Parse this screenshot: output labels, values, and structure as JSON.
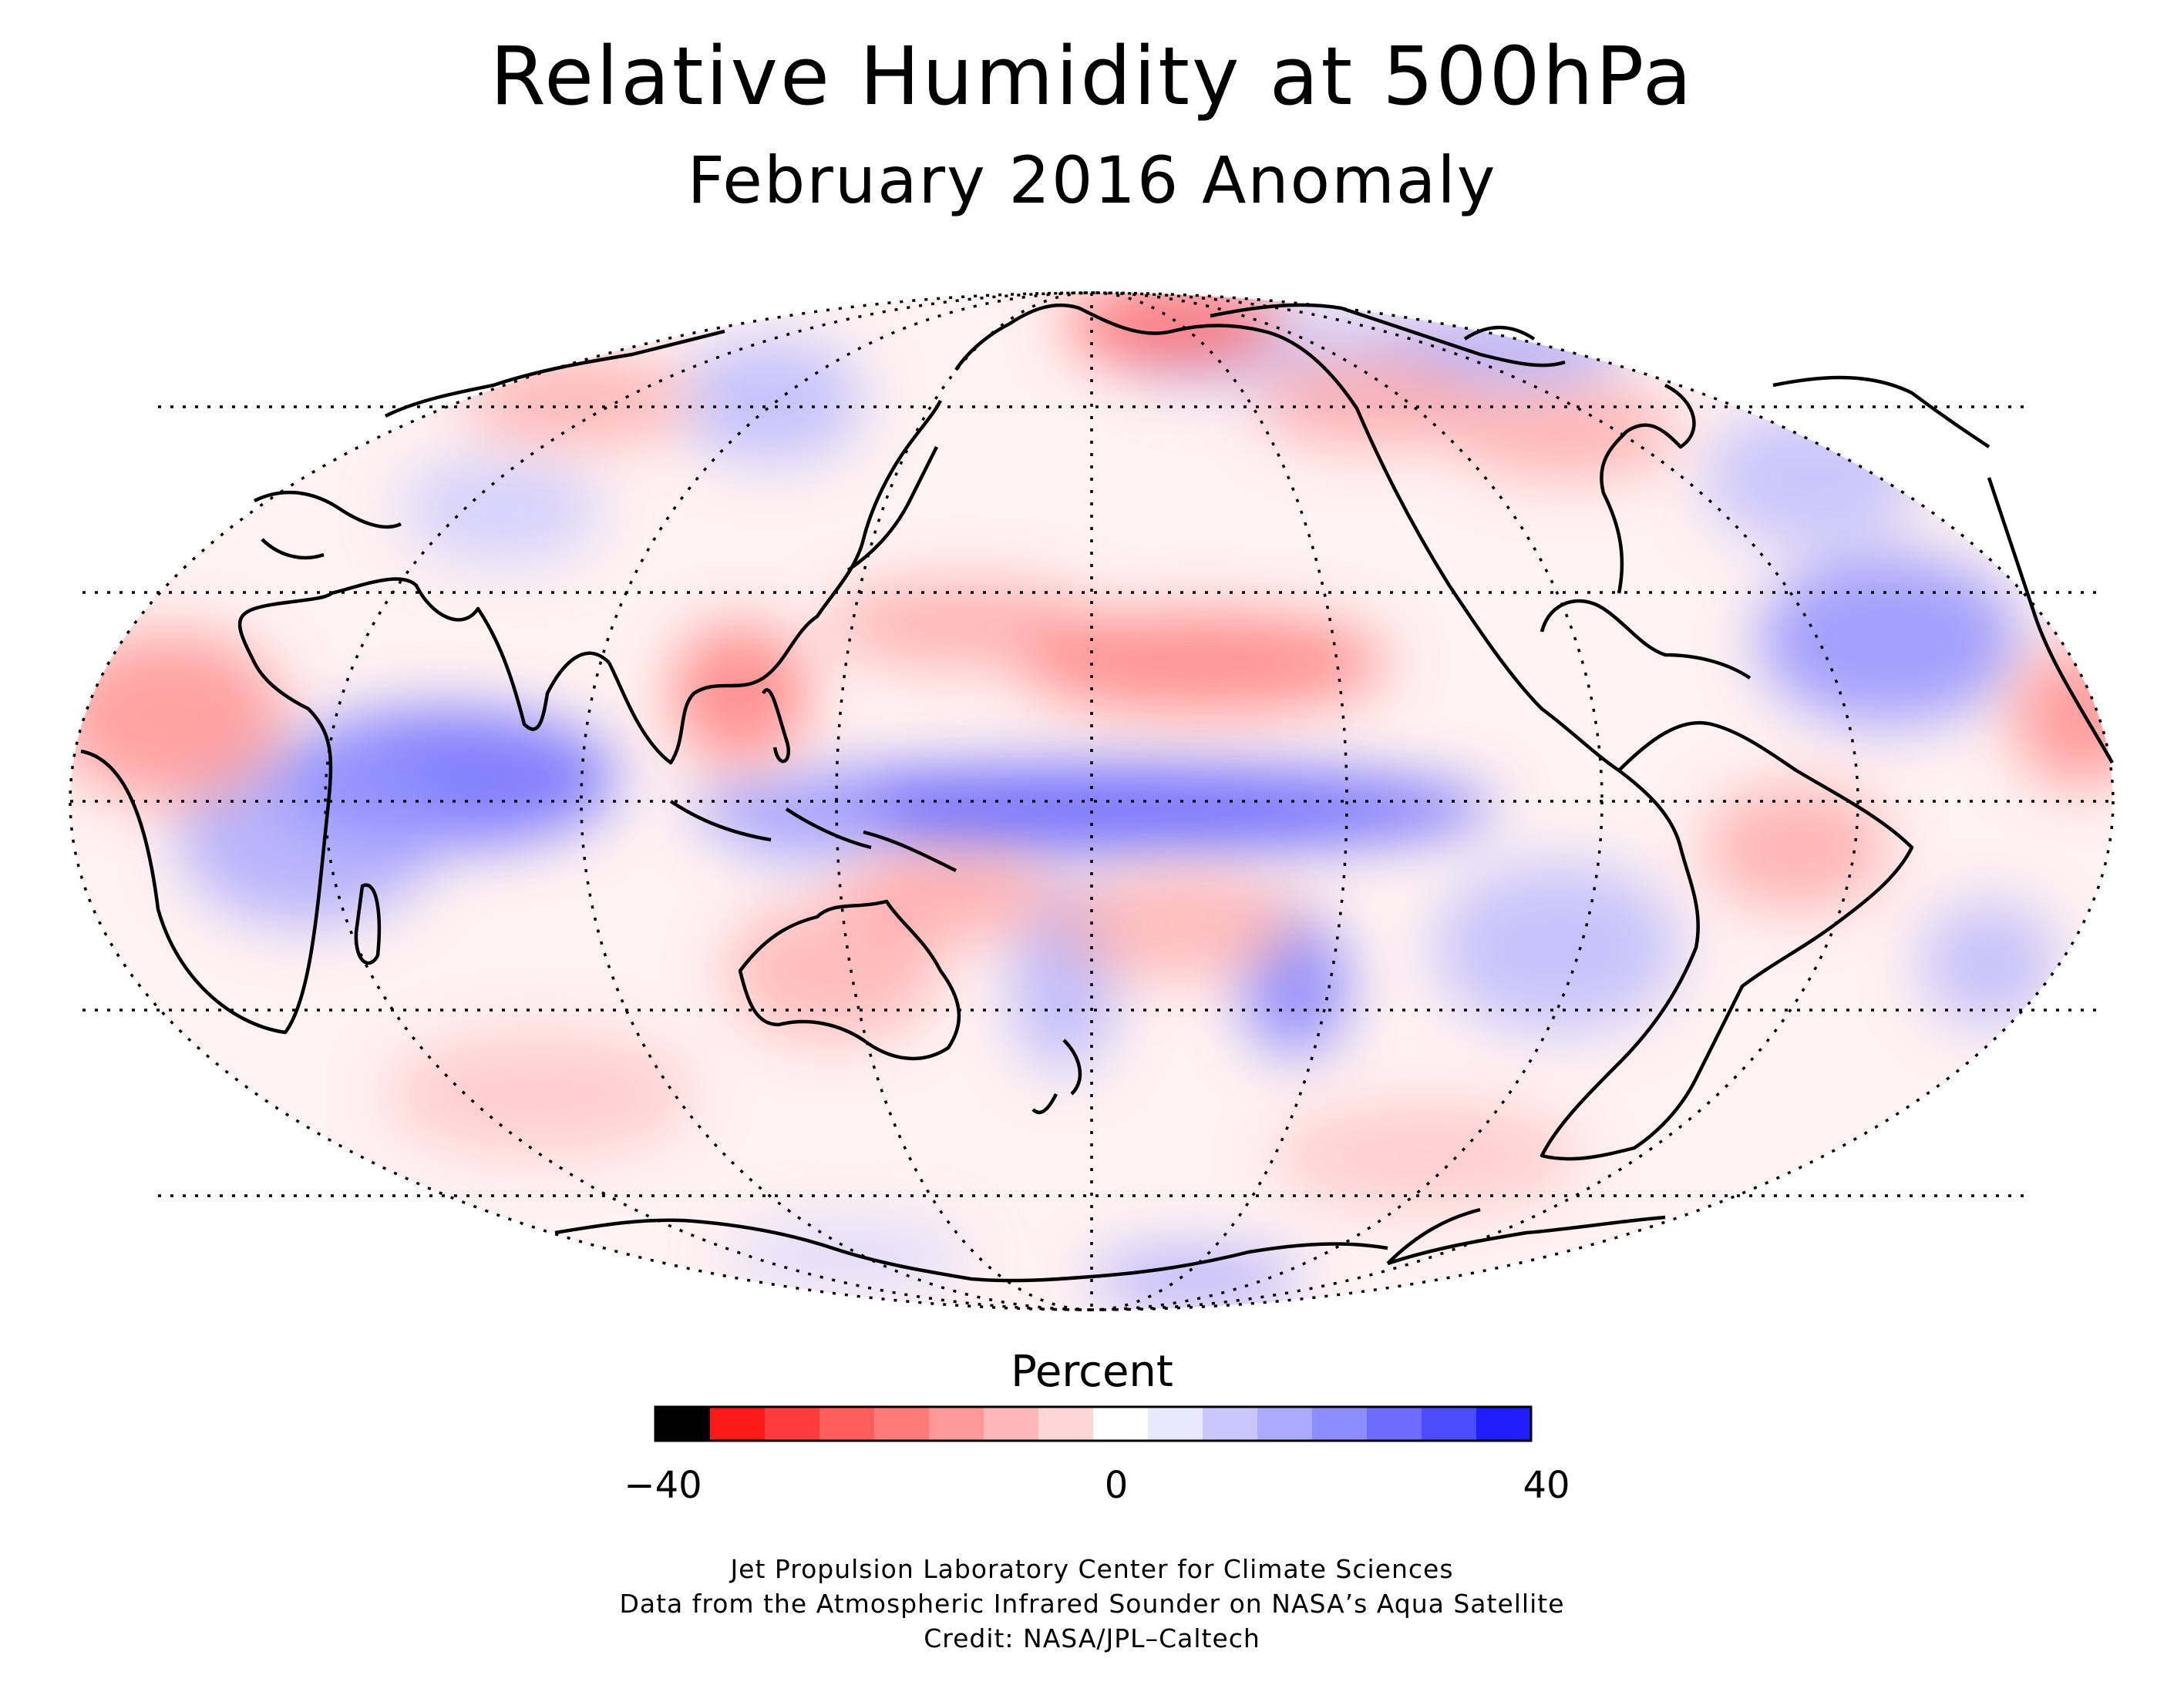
{
  "title": "Relative Humidity at 500hPa",
  "subtitle": "February 2016 Anomaly",
  "legend": {
    "title": "Percent",
    "min_label": "−40",
    "mid_label": "0",
    "max_label": "40",
    "colors": [
      "#000000",
      "#ff1a1a",
      "#ff3c3c",
      "#ff5c5c",
      "#ff7a7a",
      "#ff9898",
      "#ffb6b6",
      "#ffd6d6",
      "#ffffff",
      "#e8e8ff",
      "#c8c8ff",
      "#aaaaff",
      "#8c8cff",
      "#6c6cff",
      "#4c4cff",
      "#1e1eff"
    ]
  },
  "map": {
    "projection": "Mollweide",
    "central_meridian_deg": 180,
    "anomaly_scale": [
      -40,
      40
    ],
    "colors": {
      "positive": "#1e1eff",
      "negative": "#ff1a1a",
      "neutral": "#ffffff",
      "coast": "#000000",
      "grid": "#000000"
    }
  },
  "credits": {
    "line1": "Jet Propulsion Laboratory Center for Climate Sciences",
    "line2": "Data from the Atmospheric Infrared Sounder on NASA’s Aqua Satellite",
    "line3": "Credit: NASA/JPL–Caltech"
  }
}
